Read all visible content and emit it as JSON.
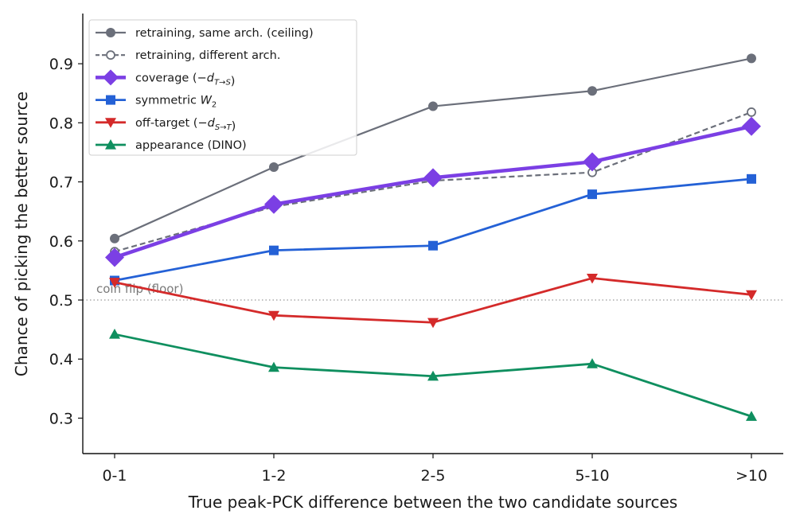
{
  "chart_data": {
    "type": "line",
    "categories": [
      "0-1",
      "1-2",
      "2-5",
      "5-10",
      ">10"
    ],
    "xlabel": "True peak-PCK difference between the two candidate sources",
    "ylabel": "Chance of picking the better source",
    "ylim": [
      0.24,
      0.985
    ],
    "yticks": [
      0.3,
      0.4,
      0.5,
      0.6,
      0.7,
      0.8,
      0.9
    ],
    "ytick_labels": [
      "0.3",
      "0.4",
      "0.5",
      "0.6",
      "0.7",
      "0.8",
      "0.9"
    ],
    "grid": false,
    "legend_position": "top-left",
    "reference_line": {
      "y": 0.5,
      "label": "coin flip (floor)",
      "color": "#999999"
    },
    "series": [
      {
        "name": "retraining, same arch. (ceiling)",
        "legend_label": [
          {
            "t": "retraining, same arch. (ceiling)"
          }
        ],
        "values": [
          0.604,
          0.725,
          0.828,
          0.854,
          0.909
        ],
        "color": "#6b6f7a",
        "marker": "circle",
        "dash": "solid",
        "line_width": 2.2,
        "marker_size": 6
      },
      {
        "name": "retraining, different arch.",
        "legend_label": [
          {
            "t": "retraining, different arch."
          }
        ],
        "values": [
          0.582,
          0.658,
          0.702,
          0.716,
          0.818
        ],
        "color": "#6b6f7a",
        "marker": "circle-open",
        "dash": "dashed",
        "line_width": 2.2,
        "marker_size": 5
      },
      {
        "name": "coverage (−d_{T→S})",
        "legend_label": [
          {
            "t": "coverage (−"
          },
          {
            "t": "d",
            "i": true
          },
          {
            "t": "T→S",
            "sub": true,
            "i": true
          },
          {
            "t": ")"
          }
        ],
        "values": [
          0.572,
          0.662,
          0.707,
          0.734,
          0.794
        ],
        "color": "#7b3fe4",
        "marker": "diamond",
        "dash": "solid",
        "line_width": 4.5,
        "marker_size": 12
      },
      {
        "name": "symmetric W_2",
        "legend_label": [
          {
            "t": "symmetric "
          },
          {
            "t": "W",
            "i": true
          },
          {
            "t": "2",
            "sub": true
          }
        ],
        "values": [
          0.533,
          0.584,
          0.592,
          0.679,
          0.705
        ],
        "color": "#2461d6",
        "marker": "square",
        "dash": "solid",
        "line_width": 2.8,
        "marker_size": 6
      },
      {
        "name": "off-target (−d_{S→T})",
        "legend_label": [
          {
            "t": "off-target (−"
          },
          {
            "t": "d",
            "i": true
          },
          {
            "t": "S→T",
            "sub": true,
            "i": true
          },
          {
            "t": ")"
          }
        ],
        "values": [
          0.53,
          0.474,
          0.462,
          0.537,
          0.509
        ],
        "color": "#d42a2a",
        "marker": "triangle-down",
        "dash": "solid",
        "line_width": 2.8,
        "marker_size": 7
      },
      {
        "name": "appearance (DINO)",
        "legend_label": [
          {
            "t": "appearance (DINO)"
          }
        ],
        "values": [
          0.442,
          0.386,
          0.371,
          0.392,
          0.303
        ],
        "color": "#0f8f5f",
        "marker": "triangle-up",
        "dash": "solid",
        "line_width": 2.8,
        "marker_size": 7
      }
    ]
  }
}
